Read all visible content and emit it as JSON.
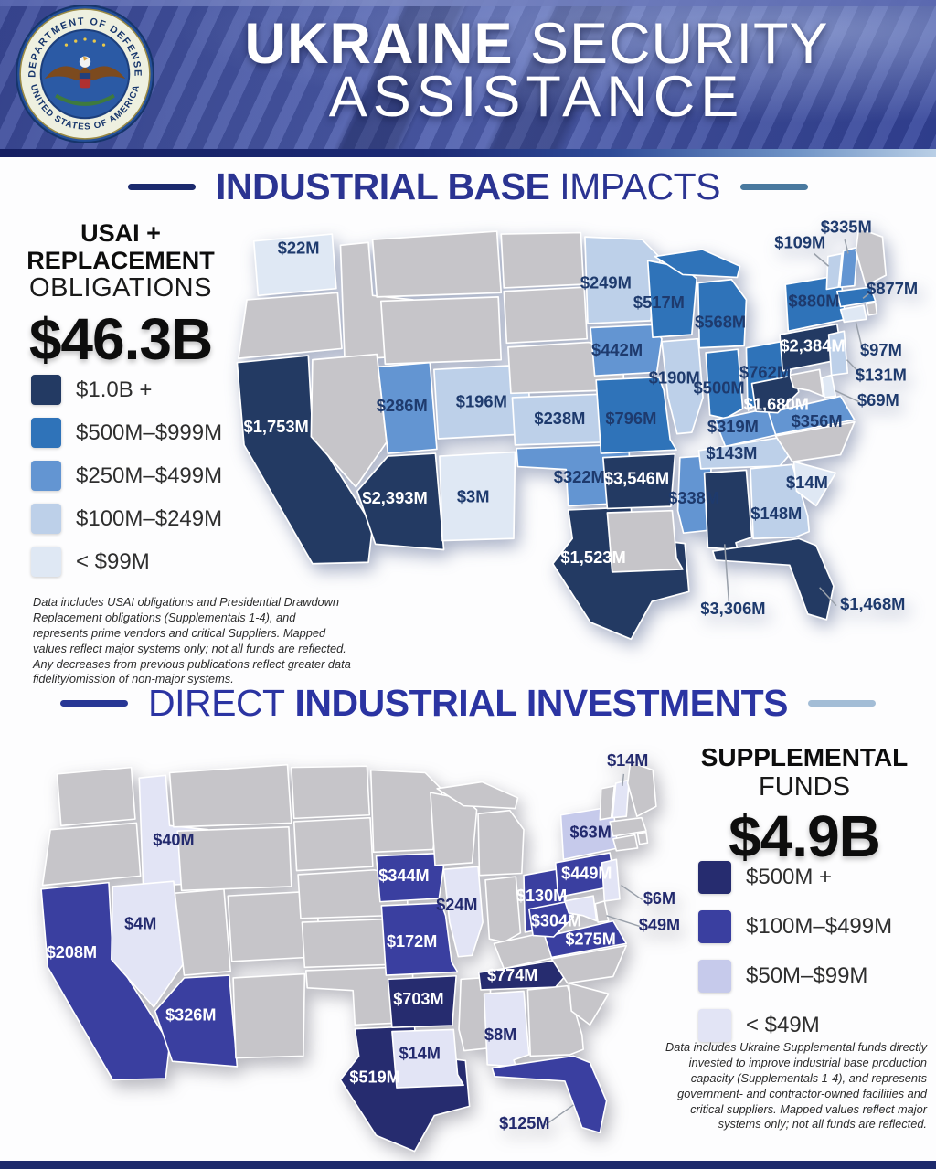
{
  "header": {
    "title_bold": "UKRAINE",
    "title_light": "SECURITY",
    "title_line2": "ASSISTANCE",
    "seal_top_text": "DEPARTMENT OF DEFENSE",
    "seal_bottom_text": "UNITED STATES OF AMERICA"
  },
  "section1": {
    "title_strong": "INDUSTRIAL BASE",
    "title_light": "IMPACTS",
    "stat_line1": "USAI +",
    "stat_line2": "REPLACEMENT",
    "stat_line3": "OBLIGATIONS",
    "stat_value": "$46.3B",
    "legend": [
      {
        "label": "$1.0B +",
        "color": "#233a63"
      },
      {
        "label": "$500M–$999M",
        "color": "#2f73b9"
      },
      {
        "label": "$250M–$499M",
        "color": "#6395d2"
      },
      {
        "label": "$100M–$249M",
        "color": "#bdd0e9"
      },
      {
        "label": "< $99M",
        "color": "#dfe8f4"
      }
    ],
    "footnote": "Data includes USAI obligations and Presidential Drawdown Replacement obligations (Supplementals 1-4), and represents prime vendors and critical Suppliers. Mapped values reflect major systems only; not all funds are reflected. Any decreases from previous publications reflect greater data fidelity/omission of non-major systems."
  },
  "section2": {
    "title_light": "DIRECT",
    "title_strong": "INDUSTRIAL INVESTMENTS",
    "stat_line1": "SUPPLEMENTAL",
    "stat_line2": "FUNDS",
    "stat_value": "$4.9B",
    "legend": [
      {
        "label": "$500M +",
        "color": "#262c6f"
      },
      {
        "label": "$100M–$499M",
        "color": "#3a3fa0"
      },
      {
        "label": "$50M–$99M",
        "color": "#c6caeb"
      },
      {
        "label": "< $49M",
        "color": "#e2e4f5"
      }
    ],
    "footnote": "Data includes Ukraine Supplemental funds directly invested to improve industrial base production capacity (Supplementals 1-4), and represents government- and contractor-owned facilities and critical suppliers. Mapped values reflect major systems only; not all funds are reflected."
  },
  "chart_data": [
    {
      "type": "choropleth_map",
      "title": "INDUSTRIAL BASE IMPACTS",
      "metric": "USAI + Replacement Obligations",
      "total": "$46.3B",
      "unit": "USD millions",
      "bins": [
        "$1.0B +",
        "$500M–$999M",
        "$250M–$499M",
        "$100M–$249M",
        "< $99M"
      ],
      "no_data_color": "#c6c5c9",
      "states": [
        {
          "id": "WA",
          "name": "Washington",
          "value_label": "$22M",
          "value_musd": 22,
          "tier": 4
        },
        {
          "id": "CA",
          "name": "California",
          "value_label": "$1,753M",
          "value_musd": 1753,
          "tier": 0
        },
        {
          "id": "AZ",
          "name": "Arizona",
          "value_label": "$2,393M",
          "value_musd": 2393,
          "tier": 0
        },
        {
          "id": "NM",
          "name": "New Mexico",
          "value_label": "$3M",
          "value_musd": 3,
          "tier": 4
        },
        {
          "id": "UT",
          "name": "Utah",
          "value_label": "$286M",
          "value_musd": 286,
          "tier": 2
        },
        {
          "id": "CO",
          "name": "Colorado",
          "value_label": "$196M",
          "value_musd": 196,
          "tier": 3
        },
        {
          "id": "KS",
          "name": "Kansas",
          "value_label": "$238M",
          "value_musd": 238,
          "tier": 3
        },
        {
          "id": "OK",
          "name": "Oklahoma",
          "value_label": "$322M",
          "value_musd": 322,
          "tier": 2
        },
        {
          "id": "TX",
          "name": "Texas",
          "value_label": "$1,523M",
          "value_musd": 1523,
          "tier": 0
        },
        {
          "id": "MN",
          "name": "Minnesota",
          "value_label": "$249M",
          "value_musd": 249,
          "tier": 3
        },
        {
          "id": "WI",
          "name": "Wisconsin",
          "value_label": "$517M",
          "value_musd": 517,
          "tier": 1
        },
        {
          "id": "MI",
          "name": "Michigan",
          "value_label": "$568M",
          "value_musd": 568,
          "tier": 1
        },
        {
          "id": "IA",
          "name": "Iowa",
          "value_label": "$442M",
          "value_musd": 442,
          "tier": 2
        },
        {
          "id": "IL",
          "name": "Illinois",
          "value_label": "$190M",
          "value_musd": 190,
          "tier": 3
        },
        {
          "id": "MO",
          "name": "Missouri",
          "value_label": "$796M",
          "value_musd": 796,
          "tier": 1
        },
        {
          "id": "AR",
          "name": "Arkansas",
          "value_label": "$3,546M",
          "value_musd": 3546,
          "tier": 0
        },
        {
          "id": "MS",
          "name": "Mississippi",
          "value_label": "$338M",
          "value_musd": 338,
          "tier": 2
        },
        {
          "id": "AL",
          "name": "Alabama",
          "value_label": "$3,306M",
          "value_musd": 3306,
          "tier": 0
        },
        {
          "id": "FL",
          "name": "Florida",
          "value_label": "$1,468M",
          "value_musd": 1468,
          "tier": 0
        },
        {
          "id": "GA",
          "name": "Georgia",
          "value_label": "$148M",
          "value_musd": 148,
          "tier": 3
        },
        {
          "id": "SC",
          "name": "South Carolina",
          "value_label": "$14M",
          "value_musd": 14,
          "tier": 4
        },
        {
          "id": "TN",
          "name": "Tennessee",
          "value_label": "$143M",
          "value_musd": 143,
          "tier": 3
        },
        {
          "id": "KY",
          "name": "Kentucky",
          "value_label": "$319M",
          "value_musd": 319,
          "tier": 2
        },
        {
          "id": "IN",
          "name": "Indiana",
          "value_label": "$500M",
          "value_musd": 500,
          "tier": 1
        },
        {
          "id": "OH",
          "name": "Ohio",
          "value_label": "$762M",
          "value_musd": 762,
          "tier": 1
        },
        {
          "id": "WV",
          "name": "West Virginia",
          "value_label": "$1,680M",
          "value_musd": 1680,
          "tier": 0
        },
        {
          "id": "VA",
          "name": "Virginia",
          "value_label": "$356M",
          "value_musd": 356,
          "tier": 2
        },
        {
          "id": "PA",
          "name": "Pennsylvania",
          "value_label": "$2,384M",
          "value_musd": 2384,
          "tier": 0
        },
        {
          "id": "NY",
          "name": "New York",
          "value_label": "$880M",
          "value_musd": 880,
          "tier": 1
        },
        {
          "id": "MA",
          "name": "Massachusetts",
          "value_label": "$877M",
          "value_musd": 877,
          "tier": 1
        },
        {
          "id": "NH",
          "name": "New Hampshire",
          "value_label": "$335M",
          "value_musd": 335,
          "tier": 2
        },
        {
          "id": "VT",
          "name": "Vermont",
          "value_label": "$109M",
          "value_musd": 109,
          "tier": 3
        },
        {
          "id": "CT",
          "name": "Connecticut",
          "value_label": "$97M",
          "value_musd": 97,
          "tier": 4
        },
        {
          "id": "NJ",
          "name": "New Jersey",
          "value_label": "$131M",
          "value_musd": 131,
          "tier": 3
        },
        {
          "id": "DE",
          "name": "Delaware",
          "value_label": "$69M",
          "value_musd": 69,
          "tier": 4
        }
      ]
    },
    {
      "type": "choropleth_map",
      "title": "DIRECT INDUSTRIAL INVESTMENTS",
      "metric": "Supplemental Funds",
      "total": "$4.9B",
      "unit": "USD millions",
      "bins": [
        "$500M +",
        "$100M–$499M",
        "$50M–$99M",
        "< $49M"
      ],
      "no_data_color": "#c6c5c9",
      "states": [
        {
          "id": "ID",
          "name": "Idaho",
          "value_label": "$40M",
          "value_musd": 40,
          "tier": 3
        },
        {
          "id": "NV",
          "name": "Nevada",
          "value_label": "$4M",
          "value_musd": 4,
          "tier": 3
        },
        {
          "id": "CA",
          "name": "California",
          "value_label": "$208M",
          "value_musd": 208,
          "tier": 1
        },
        {
          "id": "AZ",
          "name": "Arizona",
          "value_label": "$326M",
          "value_musd": 326,
          "tier": 1
        },
        {
          "id": "TX",
          "name": "Texas",
          "value_label": "$519M",
          "value_musd": 519,
          "tier": 0
        },
        {
          "id": "IA",
          "name": "Iowa",
          "value_label": "$344M",
          "value_musd": 344,
          "tier": 1
        },
        {
          "id": "IL",
          "name": "Illinois",
          "value_label": "$24M",
          "value_musd": 24,
          "tier": 3
        },
        {
          "id": "MO",
          "name": "Missouri",
          "value_label": "$172M",
          "value_musd": 172,
          "tier": 1
        },
        {
          "id": "AR",
          "name": "Arkansas",
          "value_label": "$703M",
          "value_musd": 703,
          "tier": 0
        },
        {
          "id": "LA",
          "name": "Louisiana",
          "value_label": "$14M",
          "value_musd": 14,
          "tier": 3
        },
        {
          "id": "TN",
          "name": "Tennessee",
          "value_label": "$774M",
          "value_musd": 774,
          "tier": 0
        },
        {
          "id": "AL",
          "name": "Alabama",
          "value_label": "$8M",
          "value_musd": 8,
          "tier": 3
        },
        {
          "id": "FL",
          "name": "Florida",
          "value_label": "$125M",
          "value_musd": 125,
          "tier": 1
        },
        {
          "id": "OH",
          "name": "Ohio",
          "value_label": "$130M",
          "value_musd": 130,
          "tier": 1
        },
        {
          "id": "WV",
          "name": "West Virginia",
          "value_label": "$304M",
          "value_musd": 304,
          "tier": 1
        },
        {
          "id": "VA",
          "name": "Virginia",
          "value_label": "$275M",
          "value_musd": 275,
          "tier": 1
        },
        {
          "id": "PA",
          "name": "Pennsylvania",
          "value_label": "$449M",
          "value_musd": 449,
          "tier": 1
        },
        {
          "id": "NY",
          "name": "New York",
          "value_label": "$63M",
          "value_musd": 63,
          "tier": 2
        },
        {
          "id": "NH",
          "name": "New Hampshire",
          "value_label": "$14M",
          "value_musd": 14,
          "tier": 3
        },
        {
          "id": "NJ",
          "name": "New Jersey",
          "value_label": "$6M",
          "value_musd": 6,
          "tier": 3
        },
        {
          "id": "MD",
          "name": "Maryland",
          "value_label": "$49M",
          "value_musd": 49,
          "tier": 3
        }
      ]
    }
  ]
}
